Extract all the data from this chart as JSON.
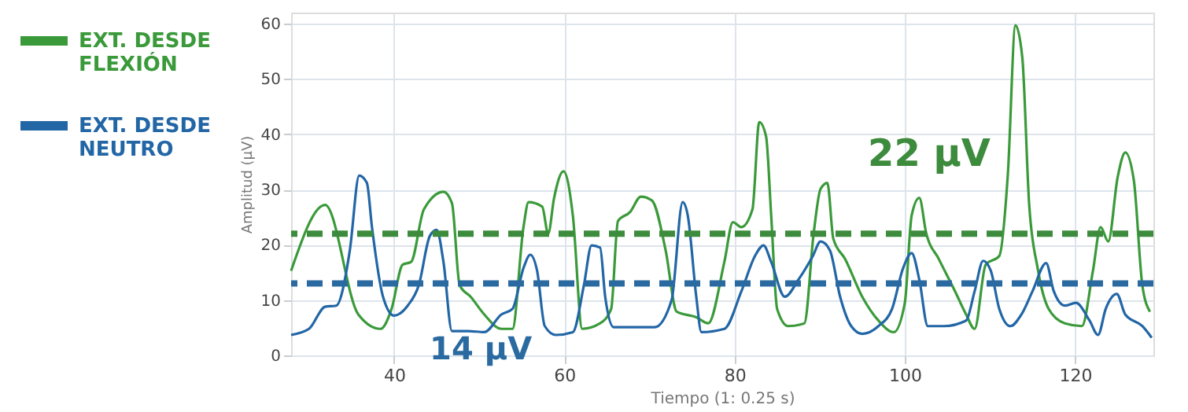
{
  "chart_data": {
    "type": "line",
    "xlabel": "Tiempo (1: 0.25 s)",
    "ylabel": "Amplitud (µV)",
    "xlim": [
      27.9,
      129.2
    ],
    "xticks": [
      40,
      60,
      80,
      100,
      120
    ],
    "ylim": [
      0,
      62
    ],
    "yticks": [
      0,
      10,
      20,
      30,
      40,
      50,
      60
    ],
    "grid": true,
    "legend": "left",
    "marker": "none",
    "line_style": "solid",
    "series": [
      {
        "name": "EXT. DESDE FLEXIÓN",
        "color": "#3a9a3a",
        "x": [
          27.9,
          31.9,
          35.8,
          38.4,
          39.7,
          41,
          42,
          43.5,
          45.8,
          46.8,
          47.7,
          49,
          50.6,
          52.6,
          53.9,
          55.2,
          55.8,
          57.4,
          58.1,
          58.8,
          59.9,
          61,
          62.1,
          64.2,
          65.5,
          66.3,
          67.7,
          69,
          70.3,
          71.9,
          73.2,
          75.5,
          76.9,
          78.8,
          79.8,
          80.8,
          82.1,
          82.9,
          83.7,
          84.3,
          85,
          86.3,
          88.2,
          89.3,
          90.1,
          90.9,
          91.6,
          93,
          95,
          96.9,
          98.7,
          100,
          100.8,
          101.7,
          102.5,
          104,
          105.9,
          107.2,
          108.2,
          109.5,
          111.1,
          112.1,
          113,
          113.8,
          114.6,
          115.6,
          116.9,
          118.8,
          120.8,
          122.1,
          123,
          123.9,
          125,
          125.9,
          126.9,
          127.9,
          128.8
        ],
        "values": [
          15.3,
          27.2,
          7.4,
          4.8,
          8.4,
          16.4,
          16.9,
          26.4,
          29.6,
          27.5,
          12.7,
          10.6,
          7.4,
          4.8,
          4.8,
          23.2,
          27.7,
          26.9,
          22,
          28.5,
          33.3,
          25.3,
          4.8,
          5.8,
          8.4,
          24.3,
          25.9,
          28.7,
          28,
          19,
          7.9,
          6.9,
          5.8,
          16.9,
          24.1,
          23.2,
          26.4,
          42.2,
          39.6,
          25.3,
          8.4,
          5.3,
          5.8,
          22.2,
          30.1,
          31.2,
          21.1,
          17.4,
          10.6,
          6.3,
          4.2,
          9.5,
          25.3,
          28.5,
          22.2,
          17.4,
          11.6,
          7.4,
          4.8,
          16.4,
          18,
          32.7,
          59.7,
          53.9,
          27.5,
          15.8,
          8.4,
          5.8,
          5.3,
          15.3,
          23.2,
          20.6,
          32.2,
          36.7,
          31.7,
          12.7,
          7.9
        ]
      },
      {
        "name": "EXT. DESDE NEUTRO",
        "color": "#2266a6",
        "x": [
          27.9,
          30,
          31.9,
          33.2,
          34.8,
          35.9,
          36.8,
          37.4,
          38.7,
          40,
          41.6,
          42.9,
          44.2,
          45,
          45.8,
          46.8,
          48.7,
          50.6,
          52.6,
          53.9,
          55.2,
          56,
          56.8,
          57.7,
          59,
          61,
          62.3,
          63.2,
          64.2,
          64.8,
          65.8,
          68.7,
          70.6,
          72.6,
          73.9,
          74.5,
          75.5,
          76.1,
          78.8,
          80.8,
          82.4,
          83.4,
          84.3,
          85.9,
          87.5,
          89.2,
          90.1,
          91.2,
          92.4,
          93.7,
          95,
          96.9,
          98.5,
          99.8,
          100.8,
          101.7,
          102.7,
          104.6,
          107.2,
          108.2,
          109.2,
          110.1,
          111.1,
          112.4,
          113.7,
          115,
          116.6,
          117.5,
          118.8,
          120.1,
          121.7,
          122.7,
          123.6,
          124.9,
          125.9,
          127.9,
          129
        ],
        "values": [
          3.7,
          4.8,
          8.8,
          9,
          19,
          32.5,
          31.2,
          23.2,
          10.6,
          7.2,
          9,
          12.7,
          21.6,
          22.7,
          16.9,
          4.4,
          4.4,
          4.2,
          7.4,
          8.4,
          15.8,
          18.2,
          15.3,
          5.3,
          3.7,
          4.2,
          12.7,
          19.9,
          19.5,
          10.6,
          5.1,
          5.1,
          5.1,
          10,
          27.7,
          25.3,
          10.6,
          4.2,
          4.8,
          11.6,
          18,
          19.9,
          16.9,
          10.6,
          13.7,
          18,
          20.6,
          19,
          10.6,
          5.3,
          3.9,
          5.3,
          8.4,
          15.8,
          18.5,
          13.7,
          5.3,
          5.3,
          6.3,
          11.6,
          17.1,
          15.3,
          8.4,
          5.3,
          7.4,
          11.6,
          16.7,
          11.6,
          9,
          9.5,
          6.3,
          3.7,
          8.4,
          11.1,
          7.4,
          5.3,
          3.2
        ]
      }
    ],
    "ref_lines": [
      {
        "axis": "y",
        "value": 22,
        "label": "22 µV",
        "color": "#3d8b3d",
        "line_style": "dashed"
      },
      {
        "axis": "y",
        "value": 13,
        "label": "14 µV",
        "color": "#2b6aa0",
        "line_style": "dashed"
      }
    ]
  }
}
